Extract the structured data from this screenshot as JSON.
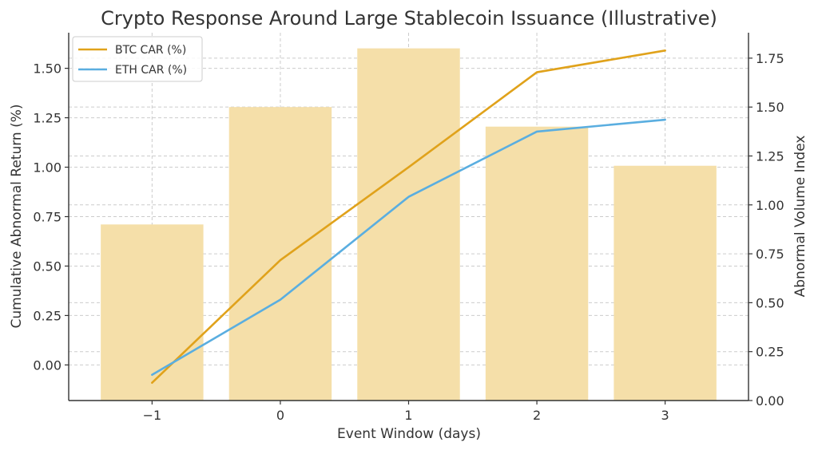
{
  "chart_data": {
    "type": "bar+line",
    "title": "Crypto Response Around Large Stablecoin Issuance (Illustrative)",
    "xlabel": "Event Window (days)",
    "ylabel_left": "Cumulative Abnormal Return (%)",
    "ylabel_right": "Abnormal Volume Index",
    "categories": [
      "−1",
      "0",
      "1",
      "2",
      "3"
    ],
    "x": [
      -1,
      0,
      1,
      2,
      3
    ],
    "xlim": [
      -1.65,
      3.65
    ],
    "ylim_left": [
      -0.18,
      1.68
    ],
    "ylim_right": [
      0.0,
      1.88
    ],
    "yticks_left": [
      "0.00",
      "0.25",
      "0.50",
      "0.75",
      "1.00",
      "1.25",
      "1.50"
    ],
    "yticks_left_values": [
      0,
      0.25,
      0.5,
      0.75,
      1.0,
      1.25,
      1.5
    ],
    "yticks_right": [
      "0.00",
      "0.25",
      "0.50",
      "0.75",
      "1.00",
      "1.25",
      "1.50",
      "1.75"
    ],
    "yticks_right_values": [
      0,
      0.25,
      0.5,
      0.75,
      1.0,
      1.25,
      1.5,
      1.75
    ],
    "bars": {
      "axis": "right",
      "values": [
        0.9,
        1.5,
        1.8,
        1.4,
        1.2
      ],
      "color": "#f5dfa9"
    },
    "series": [
      {
        "name": "BTC CAR (%)",
        "axis": "left",
        "color": "#e0a21b",
        "values": [
          -0.09,
          0.53,
          1.0,
          1.48,
          1.59
        ]
      },
      {
        "name": "ETH CAR (%)",
        "axis": "left",
        "color": "#5aaee0",
        "values": [
          -0.05,
          0.33,
          0.85,
          1.18,
          1.24
        ]
      }
    ],
    "grid": true,
    "legend_position": "top-left"
  }
}
